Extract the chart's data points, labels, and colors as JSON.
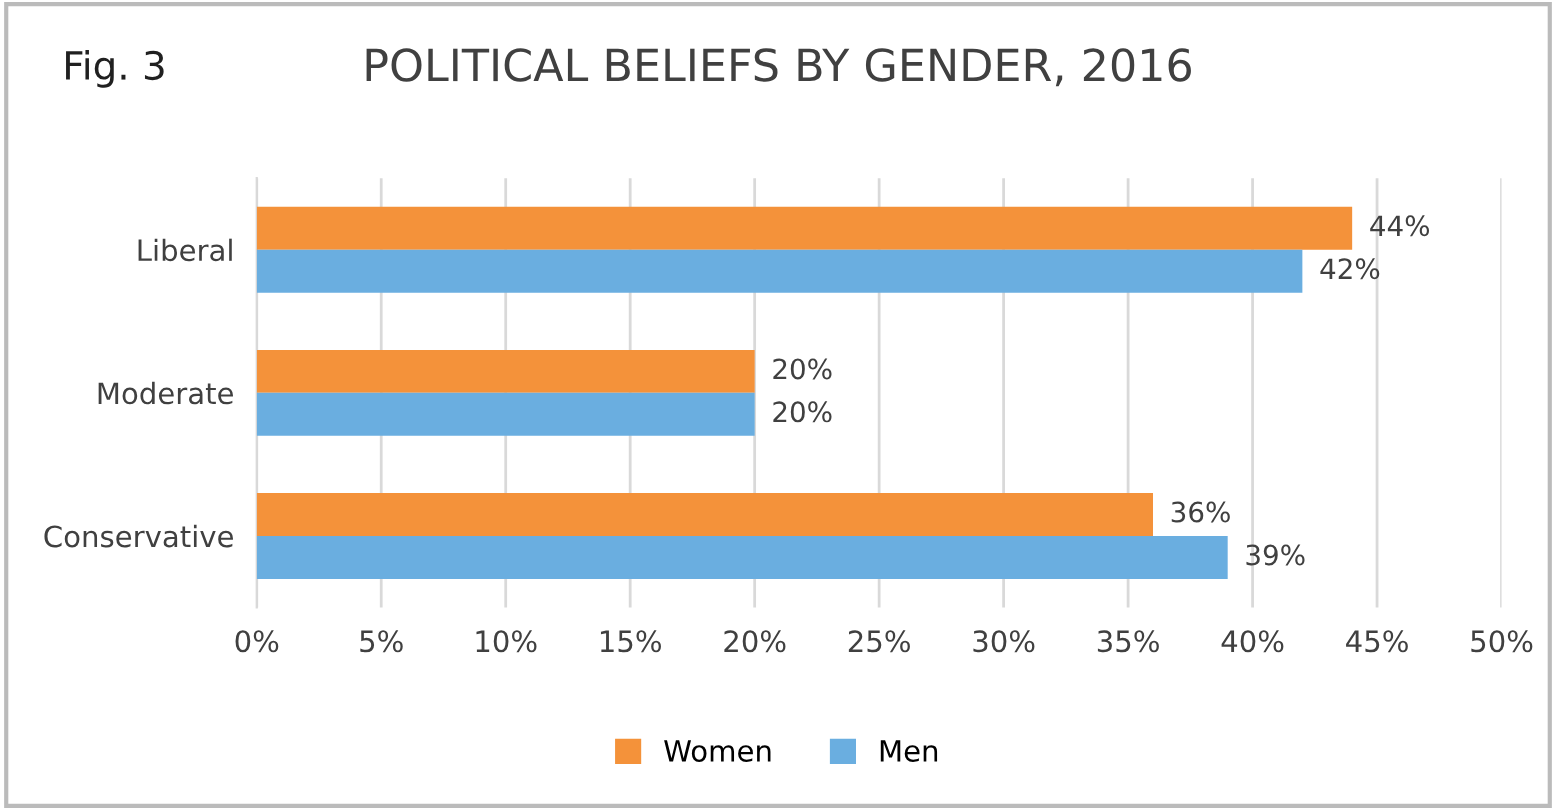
{
  "chart_data": {
    "type": "bar",
    "orientation": "horizontal",
    "title": "POLITICAL BELIEFS BY GENDER, 2016",
    "annotations": [
      "Fig. 3"
    ],
    "categories": [
      "Liberal",
      "Moderate",
      "Conservative"
    ],
    "series": [
      {
        "name": "Women",
        "color": "#f4923a",
        "values": [
          44,
          20,
          36
        ],
        "value_labels": [
          "44%",
          "20%",
          "36%"
        ]
      },
      {
        "name": "Men",
        "color": "#6aaee0",
        "values": [
          42,
          20,
          39
        ],
        "value_labels": [
          "42%",
          "20%",
          "39%"
        ]
      }
    ],
    "xlim": [
      0,
      50
    ],
    "xticks": [
      {
        "value": 0,
        "label": "0%"
      },
      {
        "value": 5,
        "label": "5%"
      },
      {
        "value": 10,
        "label": "10%"
      },
      {
        "value": 15,
        "label": "15%"
      },
      {
        "value": 20,
        "label": "20%"
      },
      {
        "value": 25,
        "label": "25%"
      },
      {
        "value": 30,
        "label": "30%"
      },
      {
        "value": 35,
        "label": "35%"
      },
      {
        "value": 40,
        "label": "40%"
      },
      {
        "value": 45,
        "label": "45%"
      },
      {
        "value": 50,
        "label": "50%"
      }
    ],
    "grid": "x",
    "legend": "bottom"
  }
}
